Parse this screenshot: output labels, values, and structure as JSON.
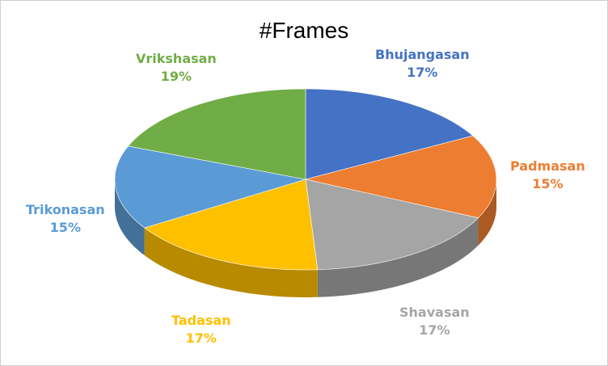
{
  "chart_data": {
    "type": "pie",
    "title": "#Frames",
    "categories": [
      "Bhujangasan",
      "Padmasan",
      "Shavasan",
      "Tadasan",
      "Trikonasan",
      "Vrikshasan"
    ],
    "values": [
      17,
      15,
      17,
      17,
      15,
      19
    ],
    "value_labels": [
      "17%",
      "15%",
      "17%",
      "17%",
      "15%",
      "19%"
    ],
    "colors": [
      "#4472C4",
      "#ED7D31",
      "#A5A5A5",
      "#FFC000",
      "#5B9BD5",
      "#70AD47"
    ],
    "style": "3d-pie",
    "legend": "none",
    "data_labels": "outside"
  }
}
